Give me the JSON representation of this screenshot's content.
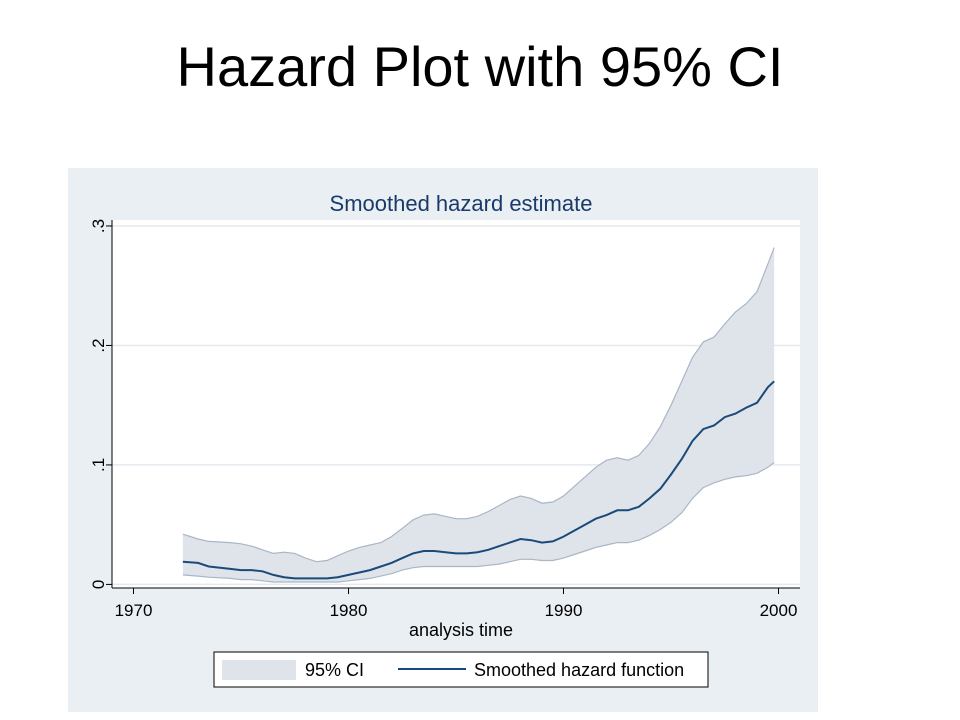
{
  "slide": {
    "title": "Hazard Plot with 95% CI"
  },
  "colors": {
    "outer_background": "#e9eff3",
    "plot_background": "#ffffff",
    "ci_fill": "#dfe4ea",
    "ci_stroke": "#a9b6c5",
    "line": "#1a4a7a",
    "grid": "#e3eaef",
    "text": "#000000",
    "title_text": "#1a3a6a"
  },
  "chart_data": {
    "type": "area",
    "title": "Smoothed hazard estimate",
    "xlabel": "analysis time",
    "ylabel": "",
    "xlim": [
      1969,
      2001
    ],
    "ylim": [
      -0.003,
      0.305
    ],
    "x_ticks": [
      1970,
      1980,
      1990,
      2000
    ],
    "x_tick_labels": [
      "1970",
      "1980",
      "1990",
      "2000"
    ],
    "y_ticks": [
      0,
      0.1,
      0.2,
      0.3
    ],
    "y_tick_labels": [
      "0",
      ".1",
      ".2",
      ".3"
    ],
    "y_tick_labels_rotated": true,
    "grid": "horizontal",
    "legend_position": "bottom",
    "legend": [
      "95% CI",
      "Smoothed hazard function"
    ],
    "x": [
      1972.3,
      1973,
      1973.5,
      1974.5,
      1975,
      1975.5,
      1976,
      1976.5,
      1977,
      1977.5,
      1978,
      1978.5,
      1979,
      1979.5,
      1980,
      1980.5,
      1981,
      1981.5,
      1982,
      1982.5,
      1983,
      1983.5,
      1984,
      1984.5,
      1985,
      1985.5,
      1986,
      1986.5,
      1987,
      1987.5,
      1988,
      1988.5,
      1989,
      1989.5,
      1990,
      1990.5,
      1991,
      1991.5,
      1992,
      1992.5,
      1993,
      1993.5,
      1994,
      1994.5,
      1995,
      1995.5,
      1996,
      1996.5,
      1997,
      1997.5,
      1998,
      1998.5,
      1999,
      1999.5,
      1999.8
    ],
    "series": [
      {
        "name": "Smoothed hazard function",
        "values": [
          0.019,
          0.018,
          0.015,
          0.013,
          0.012,
          0.012,
          0.011,
          0.008,
          0.006,
          0.005,
          0.005,
          0.005,
          0.005,
          0.006,
          0.008,
          0.01,
          0.012,
          0.015,
          0.018,
          0.022,
          0.026,
          0.028,
          0.028,
          0.027,
          0.026,
          0.026,
          0.027,
          0.029,
          0.032,
          0.035,
          0.038,
          0.037,
          0.035,
          0.036,
          0.04,
          0.045,
          0.05,
          0.055,
          0.058,
          0.062,
          0.062,
          0.065,
          0.072,
          0.08,
          0.092,
          0.105,
          0.12,
          0.13,
          0.133,
          0.14,
          0.143,
          0.148,
          0.152,
          0.165,
          0.17
        ]
      },
      {
        "name": "95% CI upper",
        "values": [
          0.042,
          0.038,
          0.036,
          0.035,
          0.034,
          0.032,
          0.029,
          0.026,
          0.027,
          0.026,
          0.022,
          0.019,
          0.02,
          0.024,
          0.028,
          0.031,
          0.033,
          0.035,
          0.04,
          0.047,
          0.054,
          0.058,
          0.059,
          0.057,
          0.055,
          0.055,
          0.057,
          0.061,
          0.066,
          0.071,
          0.074,
          0.072,
          0.068,
          0.069,
          0.074,
          0.082,
          0.09,
          0.098,
          0.104,
          0.106,
          0.104,
          0.108,
          0.118,
          0.132,
          0.15,
          0.17,
          0.19,
          0.203,
          0.207,
          0.218,
          0.228,
          0.235,
          0.245,
          0.268,
          0.282
        ]
      },
      {
        "name": "95% CI lower",
        "values": [
          0.008,
          0.007,
          0.006,
          0.005,
          0.004,
          0.004,
          0.003,
          0.002,
          0.002,
          0.002,
          0.002,
          0.002,
          0.002,
          0.002,
          0.003,
          0.004,
          0.005,
          0.007,
          0.009,
          0.012,
          0.014,
          0.015,
          0.015,
          0.015,
          0.015,
          0.015,
          0.015,
          0.016,
          0.017,
          0.019,
          0.021,
          0.021,
          0.02,
          0.02,
          0.022,
          0.025,
          0.028,
          0.031,
          0.033,
          0.035,
          0.035,
          0.037,
          0.041,
          0.046,
          0.052,
          0.06,
          0.072,
          0.081,
          0.085,
          0.088,
          0.09,
          0.091,
          0.093,
          0.098,
          0.102
        ]
      }
    ]
  }
}
